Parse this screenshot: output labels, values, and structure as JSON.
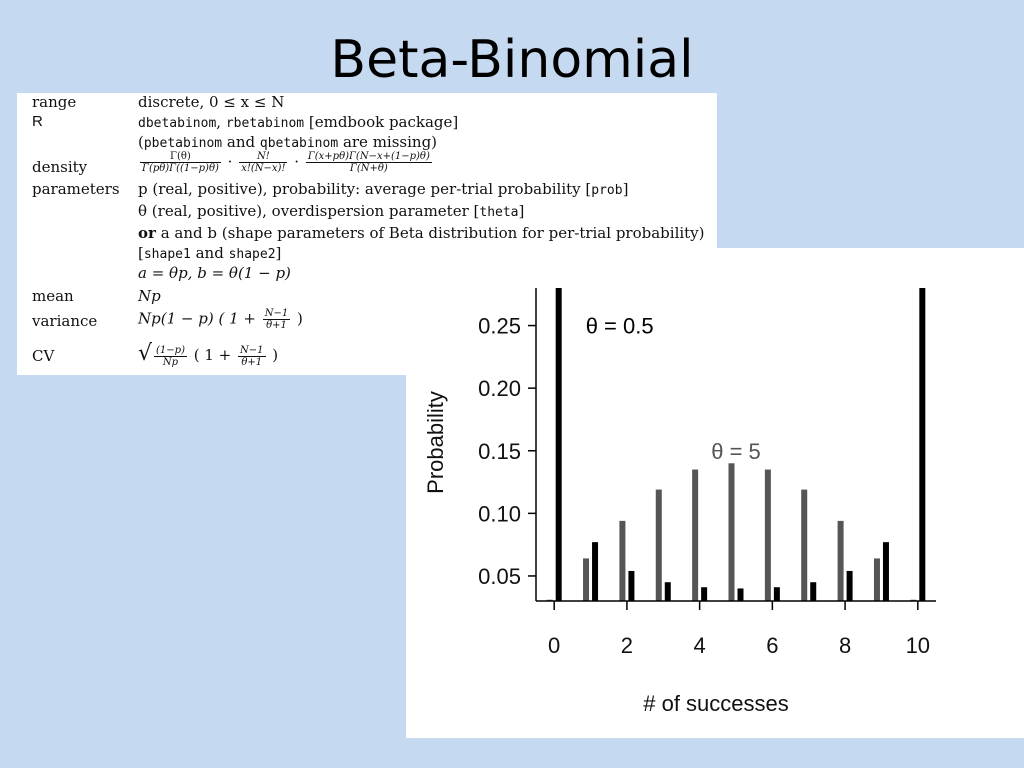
{
  "slide": {
    "title": "Beta-Binomial"
  },
  "table": {
    "range": {
      "label": "range",
      "value": "discrete, 0 ≤ x ≤ N"
    },
    "r": {
      "label": "R",
      "fn1": "dbetabinom",
      "sep1": ", ",
      "fn2": "rbetabinom",
      "pkg": " [emdbook package]",
      "line2_open": "(",
      "fn3": "pbetabinom",
      "and": " and ",
      "fn4": "qbetabinom",
      "missing": " are missing)"
    },
    "density": {
      "label": "density",
      "f1_num": "Γ(θ)",
      "f1_den": "Γ(pθ)Γ((1−p)θ)",
      "dot1": "·",
      "f2_num": "N!",
      "f2_den": "x!(N−x)!",
      "dot2": "·",
      "f3_num": "Γ(x+pθ)Γ(N−x+(1−p)θ)",
      "f3_den": "Γ(N+θ)"
    },
    "parameters": {
      "label": "parameters",
      "p_line": "p (real, positive), probability: average per-trial probability [",
      "p_code": "prob",
      "p_close": "]",
      "theta_line": "θ (real, positive), overdispersion parameter [",
      "theta_code": "theta",
      "theta_close": "]",
      "or_word": "or",
      "ab_line": " a and b (shape parameters of Beta distribution for per-trial probability)",
      "shape_open": "[",
      "shape1": "shape1",
      "shape_and": " and ",
      "shape2": "shape2",
      "shape_close": "]",
      "relation": "a = θp, b = θ(1 − p)"
    },
    "mean": {
      "label": "mean",
      "value": "Np"
    },
    "variance": {
      "label": "variance",
      "pre": "Np(1 − p) ( 1 + ",
      "f_num": "N−1",
      "f_den": "θ+1",
      "post": " )"
    },
    "cv": {
      "label": "CV",
      "root": "√",
      "f1_num": "(1−p)",
      "f1_den": "Np",
      "mid": " ( 1 + ",
      "f2_num": "N−1",
      "f2_den": "θ+1",
      "post": " )"
    }
  },
  "chart_data": {
    "type": "bar",
    "xlabel": "# of successes",
    "ylabel": "Probability",
    "xlim": [
      -0.5,
      10.5
    ],
    "ylim": [
      0.03,
      0.28
    ],
    "x_ticks": [
      0,
      2,
      4,
      6,
      8,
      10
    ],
    "y_ticks": [
      0.05,
      0.1,
      0.15,
      0.2,
      0.25
    ],
    "categories": [
      0,
      1,
      2,
      3,
      4,
      5,
      6,
      7,
      8,
      9,
      10
    ],
    "annotations": [
      {
        "text": "θ = 0.5",
        "x": 1.8,
        "y": 0.25
      },
      {
        "text": "θ = 5",
        "x": 5.0,
        "y": 0.15
      }
    ],
    "series": [
      {
        "values": [
          0.031,
          0.064,
          0.094,
          0.119,
          0.135,
          0.14,
          0.135,
          0.119,
          0.094,
          0.064,
          0.031
        ],
        "color": "#555555"
      },
      {
        "values": [
          0.28,
          0.077,
          0.054,
          0.045,
          0.041,
          0.04,
          0.041,
          0.045,
          0.054,
          0.077,
          0.28
        ],
        "color": "#000000"
      }
    ]
  }
}
